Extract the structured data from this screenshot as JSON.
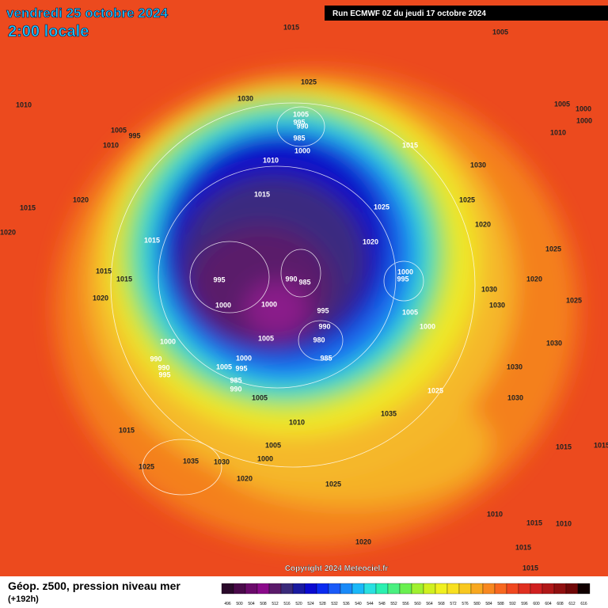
{
  "header": {
    "title": "vendredi 25 octobre 2024",
    "subtitle": "2:00 locale",
    "run": "Run ECMWF 0Z du jeudi 17 octobre 2024"
  },
  "map": {
    "isobar_labels": [
      1015,
      1005,
      1010,
      1025,
      1030,
      1005,
      995,
      990,
      985,
      1000,
      1005,
      995,
      1010,
      1010,
      1015,
      1030,
      1005,
      1000,
      1000,
      1010,
      1015,
      1025,
      1025,
      1020,
      1015,
      1020,
      1015,
      1020,
      1020,
      1025,
      1015,
      1015,
      1020,
      995,
      990,
      985,
      1000,
      995,
      1020,
      1030,
      1025,
      1030,
      1000,
      1000,
      995,
      1005,
      1000,
      990,
      980,
      985,
      1005,
      1000,
      990,
      990,
      995,
      1000,
      1005,
      995,
      985,
      990,
      1030,
      1030,
      1025,
      1005,
      1010,
      1030,
      1035,
      1015,
      1005,
      1000,
      1035,
      1030,
      1025,
      1020,
      1025,
      1015,
      1015,
      1010,
      1015,
      1010,
      1020,
      1015,
      1015
    ],
    "copyright": "Copyright 2024 Meteociel.fr"
  },
  "footer": {
    "title": "Géop. z500, pression niveau mer",
    "lead": "(+192h)",
    "scale": {
      "values": [
        496,
        500,
        504,
        508,
        512,
        516,
        520,
        524,
        528,
        532,
        536,
        540,
        544,
        548,
        552,
        556,
        560,
        564,
        568,
        572,
        576,
        580,
        584,
        588,
        592,
        596,
        600,
        604,
        608,
        612,
        616
      ],
      "colors": [
        "#2a0a2a",
        "#4a0a4a",
        "#6a0a6a",
        "#8a0a8a",
        "#5a1a6a",
        "#3a2a7a",
        "#1a1aa0",
        "#0a0ad0",
        "#0a2af0",
        "#1a5af8",
        "#1a8af8",
        "#1ab8f8",
        "#2ae0e0",
        "#2af0b0",
        "#4af080",
        "#6af050",
        "#a0f030",
        "#d0f020",
        "#f0f020",
        "#f8e020",
        "#f8c820",
        "#f8a820",
        "#f88820",
        "#f86820",
        "#f04820",
        "#e03020",
        "#d02020",
        "#b01818",
        "#901010",
        "#700808",
        "#100000"
      ]
    }
  }
}
